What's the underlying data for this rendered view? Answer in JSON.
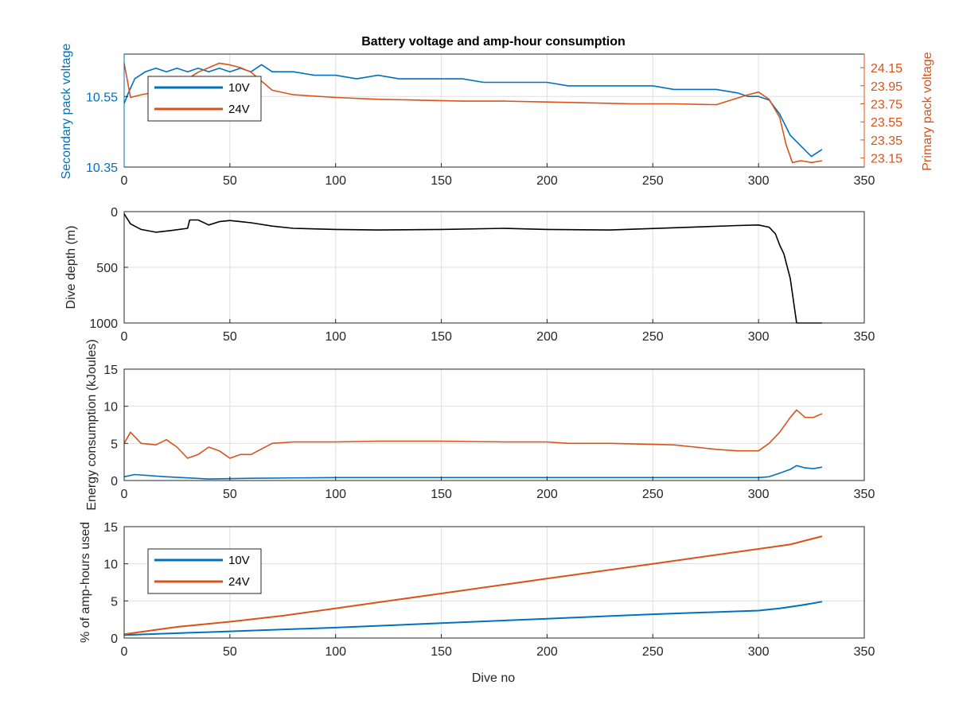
{
  "figure_title": "Battery voltage and amp-hour consumption",
  "colors": {
    "v10": "#0072BD",
    "v24": "#D95319",
    "depth": "#000000",
    "grid": "#dfdfdf",
    "axis": "#262626"
  },
  "chart_data": [
    {
      "type": "line",
      "title": "Battery voltage and amp-hour consumption",
      "xlabel": "",
      "ylabel_left": "Secondary pack voltage",
      "ylabel_right": "Primary pack voltage",
      "xlim": [
        0,
        350
      ],
      "ylim_left": [
        10.35,
        10.67
      ],
      "ylim_right": [
        23.05,
        24.3
      ],
      "xticks": [
        "0",
        "50",
        "100",
        "150",
        "200",
        "250",
        "300",
        "350"
      ],
      "yticks_left": [
        "10.35",
        "10.55"
      ],
      "yticks_right": [
        "23.15",
        "23.35",
        "23.55",
        "23.75",
        "23.95",
        "24.15"
      ],
      "grid": true,
      "legend": {
        "placement": "top-left",
        "entries": [
          "10V",
          "24V"
        ]
      },
      "series": [
        {
          "name": "10V",
          "axis": "left",
          "x": [
            0,
            2,
            5,
            10,
            15,
            20,
            25,
            30,
            35,
            40,
            45,
            50,
            55,
            60,
            65,
            70,
            80,
            90,
            100,
            110,
            120,
            130,
            140,
            150,
            160,
            170,
            180,
            190,
            200,
            210,
            220,
            230,
            240,
            250,
            260,
            270,
            280,
            290,
            295,
            300,
            305,
            310,
            315,
            320,
            325,
            330
          ],
          "y": [
            10.53,
            10.56,
            10.6,
            10.62,
            10.63,
            10.62,
            10.63,
            10.62,
            10.63,
            10.62,
            10.63,
            10.62,
            10.63,
            10.62,
            10.64,
            10.62,
            10.62,
            10.61,
            10.61,
            10.6,
            10.61,
            10.6,
            10.6,
            10.6,
            10.6,
            10.59,
            10.59,
            10.59,
            10.59,
            10.58,
            10.58,
            10.58,
            10.58,
            10.58,
            10.57,
            10.57,
            10.57,
            10.56,
            10.55,
            10.55,
            10.54,
            10.5,
            10.44,
            10.41,
            10.38,
            10.4
          ]
        },
        {
          "name": "24V",
          "axis": "right",
          "x": [
            0,
            3,
            8,
            15,
            25,
            35,
            45,
            50,
            55,
            60,
            70,
            80,
            100,
            120,
            140,
            160,
            180,
            200,
            220,
            240,
            260,
            280,
            295,
            300,
            305,
            310,
            313,
            316,
            320,
            325,
            330
          ],
          "y": [
            24.2,
            23.82,
            23.85,
            23.88,
            23.95,
            24.1,
            24.2,
            24.18,
            24.15,
            24.1,
            23.9,
            23.85,
            23.82,
            23.8,
            23.79,
            23.78,
            23.78,
            23.77,
            23.76,
            23.75,
            23.75,
            23.74,
            23.85,
            23.88,
            23.8,
            23.6,
            23.3,
            23.1,
            23.12,
            23.1,
            23.12
          ]
        }
      ]
    },
    {
      "type": "line",
      "xlabel": "",
      "ylabel": "Dive depth (m)",
      "xlim": [
        0,
        350
      ],
      "ylim": [
        0,
        1000
      ],
      "y_reversed": true,
      "xticks": [
        "0",
        "50",
        "100",
        "150",
        "200",
        "250",
        "300",
        "350"
      ],
      "yticks": [
        "0",
        "500",
        "1000"
      ],
      "grid": true,
      "series": [
        {
          "x": [
            0,
            3,
            8,
            15,
            22,
            30,
            31,
            35,
            40,
            45,
            50,
            55,
            60,
            70,
            80,
            100,
            120,
            150,
            180,
            200,
            230,
            260,
            290,
            300,
            305,
            308,
            310,
            312,
            315,
            318,
            330
          ],
          "y": [
            20,
            110,
            160,
            185,
            170,
            150,
            75,
            75,
            120,
            90,
            80,
            90,
            100,
            130,
            150,
            160,
            165,
            160,
            150,
            160,
            165,
            145,
            125,
            120,
            140,
            200,
            300,
            380,
            600,
            1000,
            1000
          ]
        }
      ]
    },
    {
      "type": "line",
      "xlabel": "",
      "ylabel": "Energy consumption (kJoules)",
      "xlim": [
        0,
        350
      ],
      "ylim": [
        0,
        15
      ],
      "xticks": [
        "0",
        "50",
        "100",
        "150",
        "200",
        "250",
        "300",
        "350"
      ],
      "yticks": [
        "0",
        "5",
        "10",
        "15"
      ],
      "grid": true,
      "series": [
        {
          "name": "24V",
          "x": [
            0,
            3,
            8,
            15,
            20,
            25,
            30,
            35,
            40,
            45,
            50,
            55,
            60,
            70,
            80,
            100,
            120,
            150,
            180,
            200,
            210,
            230,
            260,
            280,
            290,
            300,
            305,
            310,
            315,
            318,
            322,
            326,
            330
          ],
          "y": [
            5.0,
            6.5,
            5.0,
            4.8,
            5.5,
            4.5,
            3.0,
            3.5,
            4.5,
            4.0,
            3.0,
            3.5,
            3.5,
            5.0,
            5.2,
            5.2,
            5.3,
            5.3,
            5.2,
            5.2,
            5.0,
            5.0,
            4.8,
            4.2,
            4.0,
            4.0,
            5.0,
            6.5,
            8.5,
            9.5,
            8.5,
            8.5,
            9.0
          ]
        },
        {
          "name": "10V",
          "x": [
            0,
            5,
            20,
            40,
            60,
            100,
            150,
            200,
            250,
            300,
            305,
            310,
            315,
            318,
            322,
            326,
            330
          ],
          "y": [
            0.5,
            0.8,
            0.5,
            0.2,
            0.3,
            0.4,
            0.4,
            0.4,
            0.4,
            0.4,
            0.5,
            1.0,
            1.5,
            2.0,
            1.7,
            1.6,
            1.8
          ]
        }
      ]
    },
    {
      "type": "line",
      "xlabel": "Dive no",
      "ylabel": "% of amp-hours used",
      "xlim": [
        0,
        350
      ],
      "ylim": [
        0,
        15
      ],
      "xticks": [
        "0",
        "50",
        "100",
        "150",
        "200",
        "250",
        "300",
        "350"
      ],
      "yticks": [
        "0",
        "5",
        "10",
        "15"
      ],
      "grid": true,
      "legend": {
        "placement": "top-left",
        "entries": [
          "10V",
          "24V"
        ]
      },
      "series": [
        {
          "name": "10V",
          "x": [
            0,
            50,
            100,
            150,
            200,
            250,
            300,
            310,
            320,
            330
          ],
          "y": [
            0.4,
            0.9,
            1.4,
            2.0,
            2.6,
            3.2,
            3.7,
            4.0,
            4.4,
            4.9
          ]
        },
        {
          "name": "24V",
          "x": [
            0,
            25,
            50,
            75,
            100,
            150,
            200,
            250,
            300,
            315,
            330
          ],
          "y": [
            0.5,
            1.5,
            2.2,
            3.0,
            4.0,
            6.0,
            8.0,
            10.0,
            12.0,
            12.6,
            13.7
          ]
        }
      ]
    }
  ]
}
